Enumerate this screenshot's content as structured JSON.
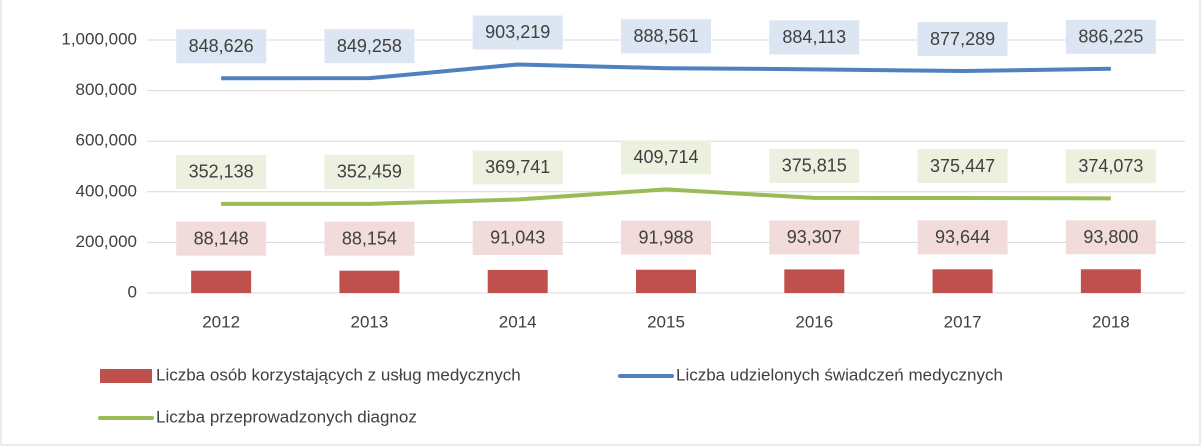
{
  "chart_data": {
    "type": "bar",
    "categories": [
      "2012",
      "2013",
      "2014",
      "2015",
      "2016",
      "2017",
      "2018"
    ],
    "ylim": [
      0,
      1000000
    ],
    "yticks": [
      0,
      {
        "value": 200000,
        "label": "200,000"
      },
      {
        "value": 400000,
        "label": "400,000"
      },
      {
        "value": 600000,
        "label": "600,000"
      },
      {
        "value": 800000,
        "label": "800,000"
      },
      {
        "value": 1000000,
        "label": "1,000,000"
      }
    ],
    "grid": true,
    "legend": "bottom",
    "series": [
      {
        "name": "Liczba osób korzystających z usług medycznych",
        "type": "bar",
        "color": "#c0504d",
        "label_color": "#f2dcdb",
        "values": [
          88148,
          88154,
          91043,
          91988,
          93307,
          93644,
          93800
        ],
        "value_labels": [
          "88,148",
          "88,154",
          "91,043",
          "91,988",
          "93,307",
          "93,644",
          "93,800"
        ]
      },
      {
        "name": "Liczba udzielonych świadczeń medycznych",
        "type": "line",
        "color": "#4f81bd",
        "label_color": "#dce6f2",
        "values": [
          848626,
          849258,
          903219,
          888561,
          884113,
          877289,
          886225
        ],
        "value_labels": [
          "848,626",
          "849,258",
          "903,219",
          "888,561",
          "884,113",
          "877,289",
          "886,225"
        ]
      },
      {
        "name": "Liczba przeprowadzonych diagnoz",
        "type": "line",
        "color": "#9bbb59",
        "label_color": "#ebf1de",
        "values": [
          352138,
          352459,
          369741,
          409714,
          375815,
          375447,
          374073
        ],
        "value_labels": [
          "352,138",
          "352,459",
          "369,741",
          "409,714",
          "375,815",
          "375,447",
          "374,073"
        ]
      }
    ]
  }
}
